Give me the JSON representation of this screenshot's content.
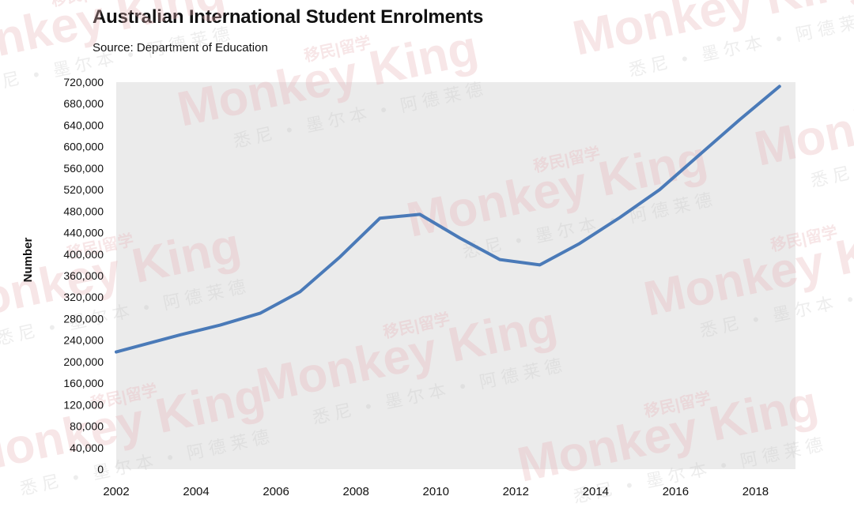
{
  "chart_data": {
    "type": "line",
    "title": "Australian International Student Enrolments",
    "subtitle": "Source: Department of Education",
    "xlabel": "",
    "ylabel": "Number",
    "x": [
      2002,
      2003,
      2004,
      2005,
      2006,
      2007,
      2008,
      2009,
      2010,
      2011,
      2012,
      2013,
      2014,
      2015,
      2016,
      2017,
      2018
    ],
    "series": [
      {
        "name": "",
        "color": "#4a7ab8",
        "values": [
          218000,
          250000,
          268000,
          290000,
          330000,
          395000,
          467000,
          474000,
          430000,
          390000,
          380000,
          420000,
          468000,
          520000,
          585000,
          650000,
          712000
        ]
      }
    ],
    "xlim": [
      2002,
      2019
    ],
    "xticks": [
      2002,
      2004,
      2006,
      2008,
      2010,
      2012,
      2014,
      2016,
      2018
    ],
    "ylim": [
      0,
      720000
    ],
    "yticks": [
      0,
      40000,
      80000,
      120000,
      160000,
      200000,
      240000,
      280000,
      320000,
      360000,
      400000,
      440000,
      480000,
      520000,
      560000,
      600000,
      640000,
      680000,
      720000
    ],
    "ytick_labels": [
      "0",
      "40,000",
      "80,000",
      "120,000",
      "160,000",
      "200,000",
      "240,000",
      "280,000",
      "320,000",
      "360,000",
      "400,000",
      "440,000",
      "480,000",
      "520,000",
      "560,000",
      "600,000",
      "640,000",
      "680,000",
      "720,000"
    ],
    "plot_background": "#ebebeb",
    "grid": false,
    "legend": "none"
  },
  "watermark": {
    "brand": "Monkey King",
    "tagline": "移民|留学",
    "cities": "悉尼 • 墨尔本 • 阿德莱德",
    "color": "#e8b4b8"
  }
}
